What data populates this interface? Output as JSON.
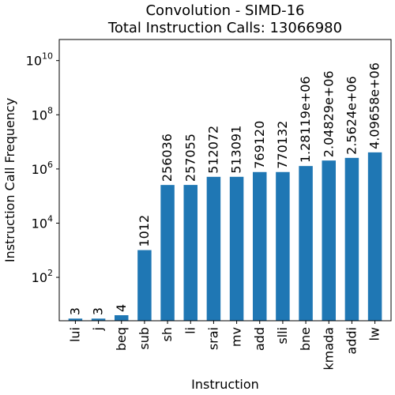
{
  "chart_data": {
    "type": "bar",
    "title": "Convolution - SIMD-16",
    "subtitle": "Total Instruction Calls: 13066980",
    "xlabel": "Instruction",
    "ylabel": "Instruction Call Frequency",
    "yscale": "log",
    "ylim": [
      2.5,
      60000000000
    ],
    "yticks": [
      {
        "value": 100,
        "base": "10",
        "exp": "2"
      },
      {
        "value": 10000,
        "base": "10",
        "exp": "4"
      },
      {
        "value": 1000000,
        "base": "10",
        "exp": "6"
      },
      {
        "value": 100000000,
        "base": "10",
        "exp": "8"
      },
      {
        "value": 10000000000,
        "base": "10",
        "exp": "10"
      }
    ],
    "grid": false,
    "legend": "none",
    "bar_color": "#1f77b4",
    "categories": [
      "lui",
      "j",
      "beq",
      "sub",
      "sh",
      "li",
      "srai",
      "mv",
      "add",
      "slli",
      "bne",
      "kmada",
      "addi",
      "lw"
    ],
    "values": [
      3,
      3,
      4,
      1012,
      256036,
      257055,
      512072,
      513091,
      769120,
      770132,
      1281190,
      2048290,
      2562400,
      4096580
    ],
    "data_labels": [
      "3",
      "3",
      "4",
      "1012",
      "256036",
      "257055",
      "512072",
      "513091",
      "769120",
      "770132",
      "1.28119e+06",
      "2.04829e+06",
      "2.5624e+06",
      "4.09658e+06"
    ]
  }
}
